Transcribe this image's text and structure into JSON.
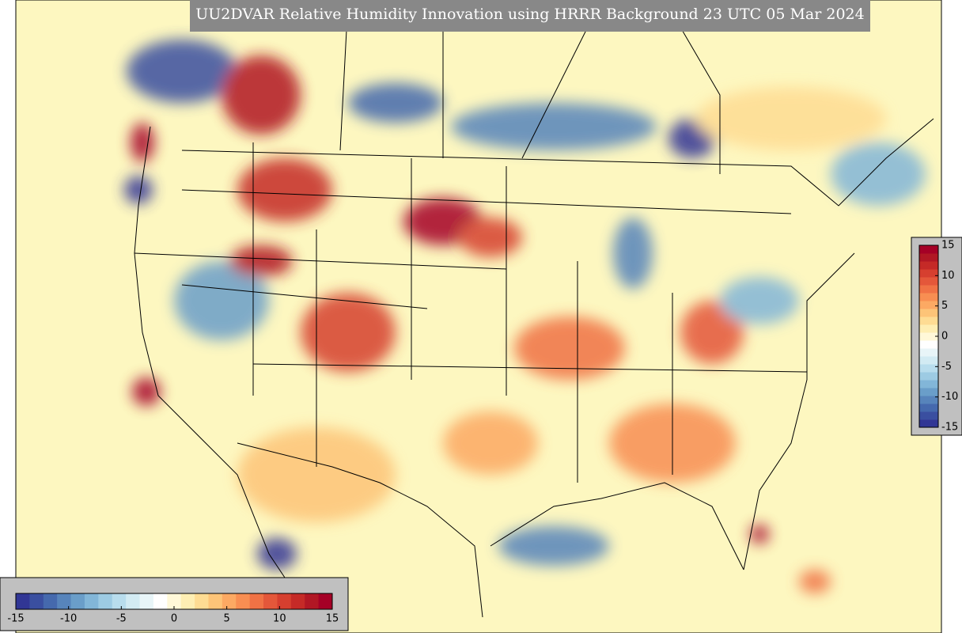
{
  "title": "UU2DVAR Relative Humidity Innovation using HRRR Background 23 UTC 05 Mar 2024",
  "colorbar": {
    "lim": [
      -15,
      15
    ],
    "ticks": [
      -15,
      -10,
      -5,
      0,
      5,
      10,
      15
    ],
    "colors": [
      "#313695",
      "#3a4fa0",
      "#4569ad",
      "#5784bb",
      "#6a9ec9",
      "#82b6d8",
      "#9dcbe3",
      "#b8dded",
      "#d2ebf3",
      "#e8f5f8",
      "#ffffff",
      "#fff8d8",
      "#feeeb3",
      "#fedc93",
      "#fdc478",
      "#fca963",
      "#f88e52",
      "#f07245",
      "#e4573a",
      "#d63f2f",
      "#c52a27",
      "#b11724",
      "#a50026"
    ]
  }
}
